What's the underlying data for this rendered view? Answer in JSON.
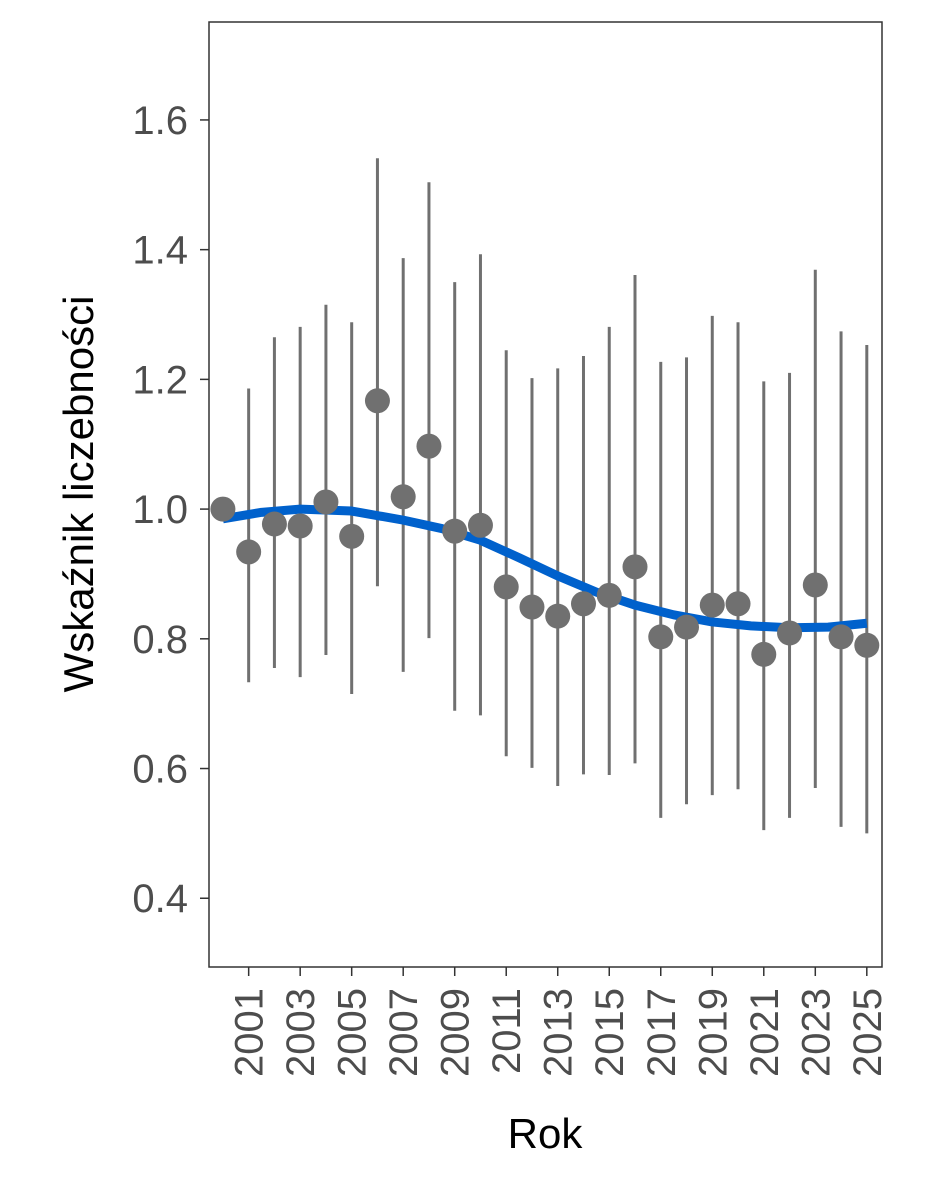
{
  "chart_data": {
    "type": "scatter",
    "title": "",
    "xlabel": "Rok",
    "ylabel": "Wskaźnik liczebności",
    "xlim": [
      1999.46,
      2025.59
    ],
    "ylim": [
      0.294,
      1.751
    ],
    "grid": false,
    "y_ticks": [
      0.4,
      0.6,
      0.8,
      1.0,
      1.2,
      1.4,
      1.6
    ],
    "y_tick_labels": [
      "0.4",
      "0.6",
      "0.8",
      "1.0",
      "1.2",
      "1.4",
      "1.6"
    ],
    "x_ticks": [
      2001,
      2003,
      2005,
      2007,
      2009,
      2011,
      2013,
      2015,
      2017,
      2019,
      2021,
      2023,
      2025
    ],
    "x_tick_labels": [
      "2001",
      "2003",
      "2005",
      "2007",
      "2009",
      "2011",
      "2013",
      "2015",
      "2017",
      "2019",
      "2021",
      "2023",
      "2025"
    ],
    "colors": {
      "points": "#707070",
      "errorbars": "#707070",
      "trend": "#0061CC",
      "axis_text": "#4D4D4D"
    },
    "series": [
      {
        "name": "index",
        "x": [
          2000,
          2001,
          2002,
          2003,
          2004,
          2005,
          2006,
          2007,
          2008,
          2009,
          2010,
          2011,
          2012,
          2013,
          2014,
          2015,
          2016,
          2017,
          2018,
          2019,
          2020,
          2021,
          2022,
          2023,
          2024,
          2025
        ],
        "y": [
          1.0,
          0.934,
          0.977,
          0.974,
          1.011,
          0.958,
          1.167,
          1.019,
          1.097,
          0.966,
          0.975,
          0.88,
          0.849,
          0.835,
          0.854,
          0.867,
          0.911,
          0.803,
          0.818,
          0.852,
          0.854,
          0.776,
          0.809,
          0.883,
          0.803,
          0.79
        ],
        "upper": [
          null,
          1.186,
          1.265,
          1.281,
          1.315,
          1.288,
          1.541,
          1.387,
          1.504,
          1.35,
          1.393,
          1.245,
          1.202,
          1.217,
          1.236,
          1.281,
          1.361,
          1.227,
          1.234,
          1.298,
          1.288,
          1.197,
          1.21,
          1.369,
          1.274,
          1.253
        ],
        "lower": [
          null,
          0.733,
          0.755,
          0.741,
          0.775,
          0.715,
          0.881,
          0.749,
          0.801,
          0.689,
          0.682,
          0.619,
          0.601,
          0.573,
          0.591,
          0.59,
          0.608,
          0.524,
          0.545,
          0.559,
          0.568,
          0.505,
          0.524,
          0.57,
          0.51,
          0.5
        ]
      },
      {
        "name": "trend",
        "type": "line",
        "x": [
          2000,
          2001.5,
          2003,
          2005,
          2007,
          2008.5,
          2010,
          2011.5,
          2013,
          2014.5,
          2016,
          2017.5,
          2019,
          2020.5,
          2022,
          2023.5,
          2025
        ],
        "y": [
          0.985,
          0.995,
          1.0,
          0.997,
          0.983,
          0.97,
          0.952,
          0.925,
          0.897,
          0.872,
          0.852,
          0.837,
          0.826,
          0.82,
          0.817,
          0.818,
          0.824
        ]
      }
    ]
  }
}
